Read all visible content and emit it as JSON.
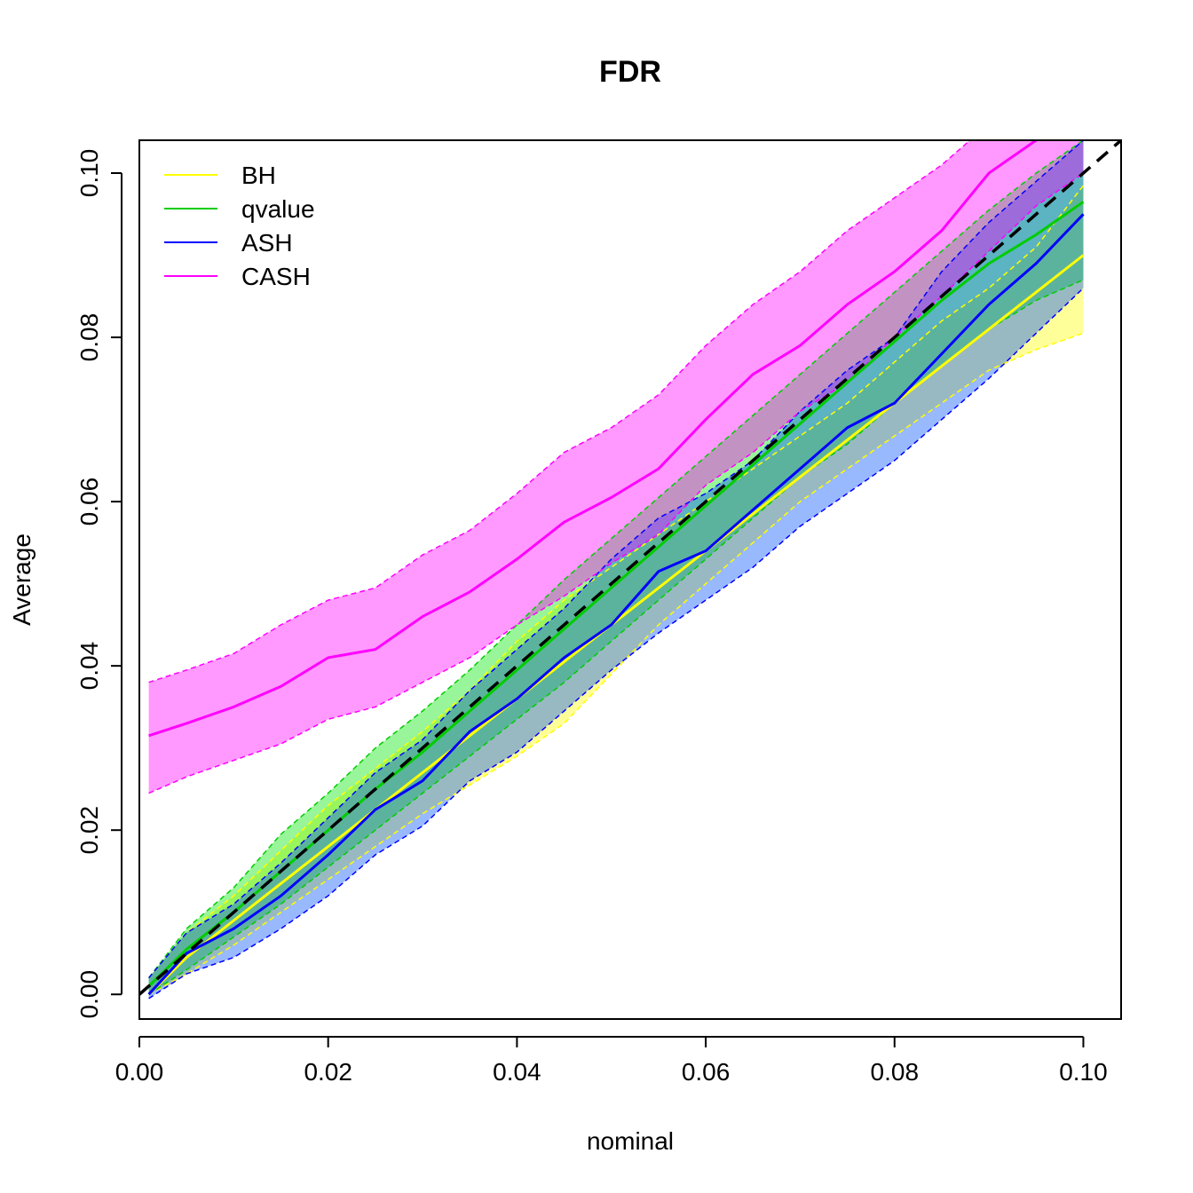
{
  "chart_data": {
    "type": "line",
    "title": "FDR",
    "xlabel": "nominal",
    "ylabel": "Average",
    "xlim": [
      0,
      0.104
    ],
    "ylim": [
      -0.003,
      0.104
    ],
    "xticks": [
      0,
      0.02,
      0.04,
      0.06,
      0.08,
      0.1
    ],
    "yticks": [
      0,
      0.02,
      0.04,
      0.06,
      0.08,
      0.1
    ],
    "xtick_labels": [
      "0.00",
      "0.02",
      "0.04",
      "0.06",
      "0.08",
      "0.10"
    ],
    "ytick_labels": [
      "0.00",
      "0.02",
      "0.04",
      "0.06",
      "0.08",
      "0.10"
    ],
    "legend_position": "top-left",
    "reference_line": {
      "from": [
        0,
        0
      ],
      "to": [
        0.104,
        0.104
      ],
      "style": "dashed",
      "color": "#000000"
    },
    "series": [
      {
        "name": "BH",
        "color": "#ffff00",
        "band_fill": "rgba(255,255,0,0.4)",
        "x": [
          0.001,
          0.005,
          0.01,
          0.015,
          0.02,
          0.025,
          0.03,
          0.035,
          0.04,
          0.045,
          0.05,
          0.055,
          0.06,
          0.065,
          0.07,
          0.075,
          0.08,
          0.085,
          0.09,
          0.095,
          0.1
        ],
        "mean": [
          0.0,
          0.0045,
          0.009,
          0.0135,
          0.018,
          0.0225,
          0.027,
          0.0315,
          0.036,
          0.0405,
          0.045,
          0.0495,
          0.054,
          0.0585,
          0.063,
          0.0675,
          0.072,
          0.0765,
          0.081,
          0.0855,
          0.09
        ],
        "lower": [
          0.0,
          0.0025,
          0.006,
          0.01,
          0.014,
          0.018,
          0.022,
          0.0255,
          0.029,
          0.033,
          0.039,
          0.045,
          0.05,
          0.055,
          0.06,
          0.064,
          0.068,
          0.072,
          0.076,
          0.0785,
          0.0805
        ],
        "upper": [
          0.002,
          0.0075,
          0.012,
          0.0175,
          0.023,
          0.0275,
          0.032,
          0.037,
          0.043,
          0.048,
          0.052,
          0.056,
          0.06,
          0.064,
          0.068,
          0.072,
          0.077,
          0.082,
          0.086,
          0.091,
          0.0985
        ]
      },
      {
        "name": "qvalue",
        "color": "#00cd00",
        "band_fill": "rgba(0,230,0,0.4)",
        "x": [
          0.001,
          0.005,
          0.01,
          0.015,
          0.02,
          0.025,
          0.03,
          0.035,
          0.04,
          0.045,
          0.05,
          0.055,
          0.06,
          0.065,
          0.07,
          0.075,
          0.08,
          0.085,
          0.09,
          0.095,
          0.1
        ],
        "mean": [
          0.001,
          0.0055,
          0.01,
          0.015,
          0.02,
          0.025,
          0.0295,
          0.0345,
          0.0395,
          0.0445,
          0.0495,
          0.0545,
          0.0595,
          0.0645,
          0.0695,
          0.0745,
          0.0795,
          0.0845,
          0.089,
          0.0925,
          0.0965
        ],
        "lower": [
          0.0,
          0.003,
          0.007,
          0.011,
          0.0155,
          0.02,
          0.0245,
          0.029,
          0.0335,
          0.038,
          0.043,
          0.048,
          0.053,
          0.058,
          0.063,
          0.067,
          0.072,
          0.0765,
          0.081,
          0.0845,
          0.087
        ],
        "upper": [
          0.002,
          0.008,
          0.013,
          0.0195,
          0.0245,
          0.03,
          0.0345,
          0.0395,
          0.045,
          0.0505,
          0.0555,
          0.0605,
          0.0655,
          0.0705,
          0.0755,
          0.0805,
          0.0855,
          0.0905,
          0.0955,
          0.1,
          0.104
        ]
      },
      {
        "name": "ASH",
        "color": "#0000ff",
        "band_fill": "rgba(0,80,255,0.4)",
        "x": [
          0.001,
          0.005,
          0.01,
          0.015,
          0.02,
          0.025,
          0.03,
          0.035,
          0.04,
          0.045,
          0.05,
          0.055,
          0.06,
          0.065,
          0.07,
          0.075,
          0.08,
          0.085,
          0.09,
          0.095,
          0.1
        ],
        "mean": [
          0.0,
          0.005,
          0.008,
          0.012,
          0.017,
          0.0225,
          0.026,
          0.032,
          0.036,
          0.041,
          0.045,
          0.0515,
          0.054,
          0.059,
          0.064,
          0.069,
          0.072,
          0.078,
          0.084,
          0.089,
          0.095
        ],
        "lower": [
          -0.0005,
          0.0025,
          0.0045,
          0.008,
          0.012,
          0.017,
          0.0205,
          0.026,
          0.0295,
          0.0345,
          0.0395,
          0.044,
          0.048,
          0.052,
          0.057,
          0.061,
          0.065,
          0.07,
          0.075,
          0.0805,
          0.086
        ],
        "upper": [
          0.002,
          0.0075,
          0.011,
          0.016,
          0.0215,
          0.027,
          0.031,
          0.037,
          0.042,
          0.047,
          0.053,
          0.058,
          0.061,
          0.065,
          0.071,
          0.076,
          0.08,
          0.088,
          0.094,
          0.099,
          0.104
        ]
      },
      {
        "name": "CASH",
        "color": "#ff00ff",
        "band_fill": "rgba(255,0,255,0.4)",
        "x": [
          0.001,
          0.005,
          0.01,
          0.015,
          0.02,
          0.025,
          0.03,
          0.035,
          0.04,
          0.045,
          0.05,
          0.055,
          0.06,
          0.065,
          0.07,
          0.075,
          0.08,
          0.085,
          0.09,
          0.095,
          0.1
        ],
        "mean": [
          0.0315,
          0.033,
          0.035,
          0.0375,
          0.041,
          0.042,
          0.046,
          0.049,
          0.053,
          0.0575,
          0.0605,
          0.064,
          0.07,
          0.0755,
          0.079,
          0.084,
          0.088,
          0.093,
          0.1,
          0.104,
          0.107
        ],
        "lower": [
          0.0245,
          0.0265,
          0.0285,
          0.0305,
          0.0335,
          0.035,
          0.038,
          0.041,
          0.045,
          0.0485,
          0.0525,
          0.056,
          0.062,
          0.066,
          0.071,
          0.0745,
          0.08,
          0.085,
          0.0905,
          0.096,
          0.1
        ],
        "upper": [
          0.038,
          0.0395,
          0.0415,
          0.045,
          0.048,
          0.0495,
          0.0535,
          0.0565,
          0.061,
          0.066,
          0.069,
          0.073,
          0.079,
          0.084,
          0.088,
          0.093,
          0.097,
          0.101,
          0.106,
          0.11,
          0.114
        ]
      }
    ]
  }
}
